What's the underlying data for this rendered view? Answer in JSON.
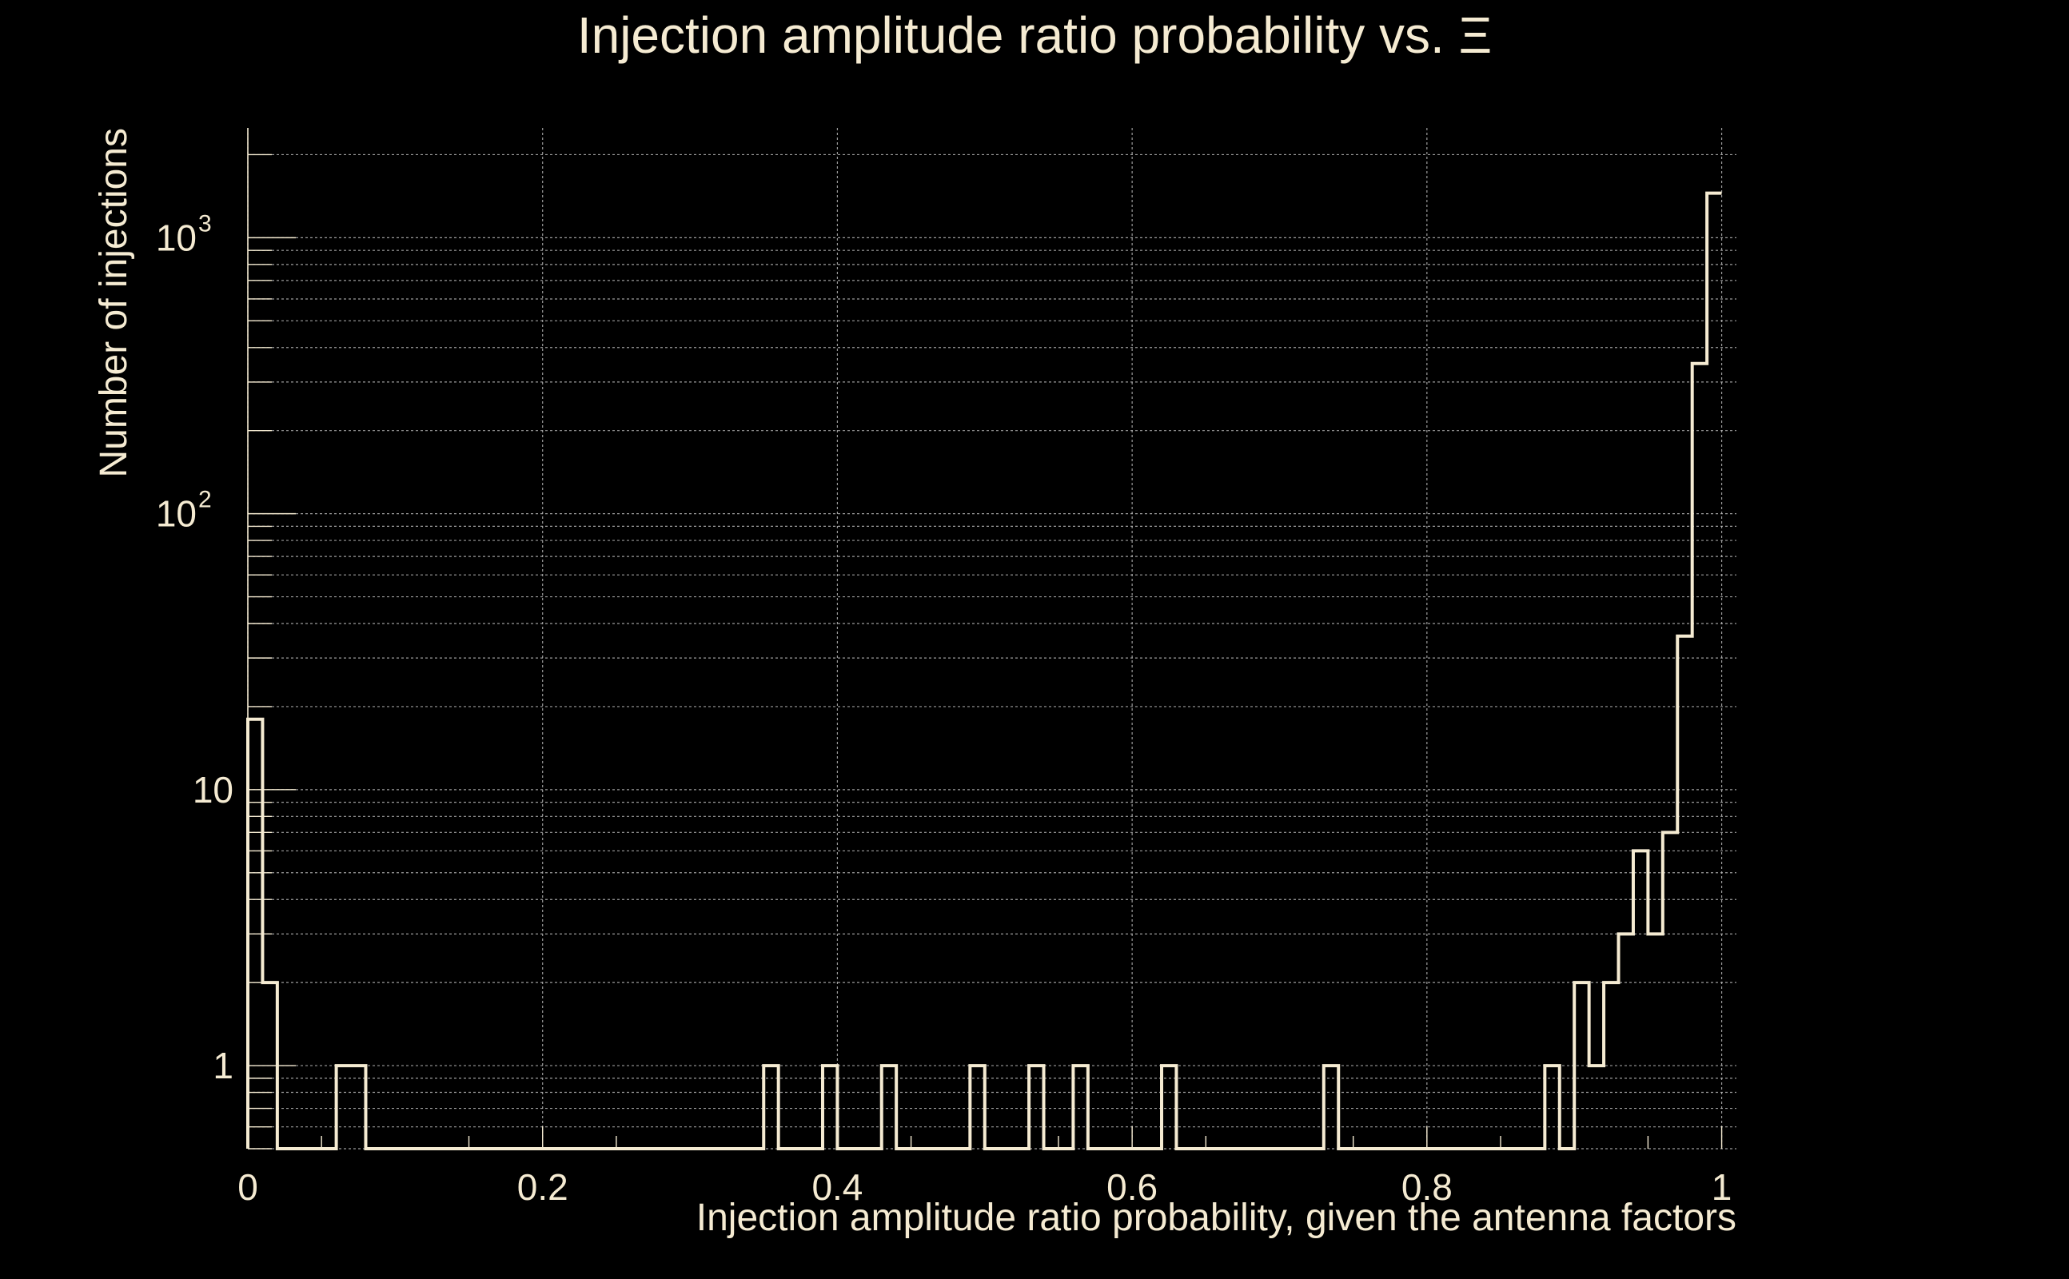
{
  "chart_data": {
    "type": "bar",
    "title": "Injection amplitude ratio probability vs.  Ξ",
    "xlabel": "Injection amplitude ratio probability, given the antenna factors",
    "ylabel": "Number of injections",
    "xlim": [
      0,
      1.01
    ],
    "ylim": [
      0.5,
      2500
    ],
    "yscale": "log",
    "grid": true,
    "legend": "none",
    "bin_width": 0.01,
    "x_ticks": [
      {
        "value": 0,
        "label": "0"
      },
      {
        "value": 0.2,
        "label": "0.2"
      },
      {
        "value": 0.4,
        "label": "0.4"
      },
      {
        "value": 0.6,
        "label": "0.6"
      },
      {
        "value": 0.8,
        "label": "0.8"
      },
      {
        "value": 1,
        "label": "1"
      }
    ],
    "y_ticks": [
      {
        "value": 1,
        "base": "1",
        "exp": ""
      },
      {
        "value": 10,
        "base": "10",
        "exp": ""
      },
      {
        "value": 100,
        "base": "10",
        "exp": "2"
      },
      {
        "value": 1000,
        "base": "10",
        "exp": "3"
      }
    ],
    "bins": [
      {
        "x": 0.0,
        "count": 18
      },
      {
        "x": 0.01,
        "count": 2
      },
      {
        "x": 0.06,
        "count": 1
      },
      {
        "x": 0.07,
        "count": 1
      },
      {
        "x": 0.35,
        "count": 1
      },
      {
        "x": 0.39,
        "count": 1
      },
      {
        "x": 0.43,
        "count": 1
      },
      {
        "x": 0.49,
        "count": 1
      },
      {
        "x": 0.53,
        "count": 1
      },
      {
        "x": 0.56,
        "count": 1
      },
      {
        "x": 0.62,
        "count": 1
      },
      {
        "x": 0.73,
        "count": 1
      },
      {
        "x": 0.88,
        "count": 1
      },
      {
        "x": 0.9,
        "count": 2
      },
      {
        "x": 0.91,
        "count": 1
      },
      {
        "x": 0.92,
        "count": 2
      },
      {
        "x": 0.93,
        "count": 3
      },
      {
        "x": 0.94,
        "count": 6
      },
      {
        "x": 0.95,
        "count": 3
      },
      {
        "x": 0.96,
        "count": 7
      },
      {
        "x": 0.97,
        "count": 36
      },
      {
        "x": 0.98,
        "count": 350
      },
      {
        "x": 0.99,
        "count": 1450
      }
    ],
    "colors": {
      "background": "#000000",
      "foreground": "#f5ebd2",
      "grid": "#b9b9b9"
    }
  }
}
